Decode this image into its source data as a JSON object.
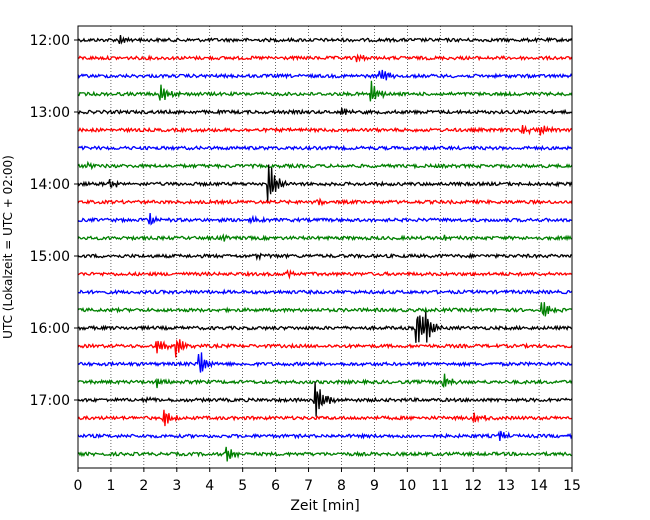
{
  "chart_data": {
    "type": "line",
    "title": "",
    "xlabel": "Zeit  [min]",
    "ylabel": "UTC (Lokalzeit = UTC + 02:00)",
    "xlim": [
      0,
      15
    ],
    "x_ticks": [
      "0",
      "1",
      "2",
      "3",
      "4",
      "5",
      "6",
      "7",
      "8",
      "9",
      "10",
      "11",
      "12",
      "13",
      "14",
      "15"
    ],
    "y_tick_labels": [
      "12:00",
      "13:00",
      "14:00",
      "15:00",
      "16:00",
      "17:00"
    ],
    "grid": "vertical dotted",
    "row_interval_minutes": 15,
    "trace_colors": [
      "#000000",
      "#ff0000",
      "#0000ff",
      "#008000"
    ],
    "traces": [
      {
        "start": "12:00",
        "color": "#000000",
        "events": [
          {
            "t": 1.3,
            "amp": 0.3
          }
        ]
      },
      {
        "start": "12:15",
        "color": "#ff0000",
        "events": [
          {
            "t": 8.5,
            "amp": 0.2
          }
        ]
      },
      {
        "start": "12:30",
        "color": "#0000ff",
        "events": [
          {
            "t": 9.2,
            "amp": 0.5
          }
        ]
      },
      {
        "start": "12:45",
        "color": "#008000",
        "events": [
          {
            "t": 2.5,
            "amp": 0.9
          },
          {
            "t": 8.9,
            "amp": 0.8
          }
        ]
      },
      {
        "start": "13:00",
        "color": "#000000",
        "events": [
          {
            "t": 8.0,
            "amp": 0.3
          }
        ]
      },
      {
        "start": "13:15",
        "color": "#ff0000",
        "events": [
          {
            "t": 14.0,
            "amp": 0.4
          },
          {
            "t": 13.5,
            "amp": 0.3
          }
        ]
      },
      {
        "start": "13:30",
        "color": "#0000ff",
        "events": []
      },
      {
        "start": "13:45",
        "color": "#008000",
        "events": [
          {
            "t": 0.3,
            "amp": 0.2
          }
        ]
      },
      {
        "start": "14:00",
        "color": "#000000",
        "events": [
          {
            "t": 5.8,
            "amp": 1.6
          },
          {
            "t": 1.0,
            "amp": 0.3
          }
        ]
      },
      {
        "start": "14:15",
        "color": "#ff0000",
        "events": [
          {
            "t": 7.3,
            "amp": 0.3
          }
        ]
      },
      {
        "start": "14:30",
        "color": "#0000ff",
        "events": [
          {
            "t": 2.2,
            "amp": 0.4
          },
          {
            "t": 5.2,
            "amp": 0.3
          }
        ]
      },
      {
        "start": "14:45",
        "color": "#008000",
        "events": [
          {
            "t": 4.4,
            "amp": 0.2
          },
          {
            "t": 11.1,
            "amp": 0.2
          }
        ]
      },
      {
        "start": "15:00",
        "color": "#000000",
        "events": [
          {
            "t": 5.4,
            "amp": 0.2
          }
        ]
      },
      {
        "start": "15:15",
        "color": "#ff0000",
        "events": [
          {
            "t": 6.4,
            "amp": 0.2
          }
        ]
      },
      {
        "start": "15:30",
        "color": "#0000ff",
        "events": []
      },
      {
        "start": "15:45",
        "color": "#008000",
        "events": [
          {
            "t": 14.1,
            "amp": 0.9
          }
        ]
      },
      {
        "start": "16:00",
        "color": "#000000",
        "events": [
          {
            "t": 10.3,
            "amp": 1.4
          },
          {
            "t": 10.6,
            "amp": 0.8
          }
        ]
      },
      {
        "start": "16:15",
        "color": "#ff0000",
        "events": [
          {
            "t": 2.4,
            "amp": 0.6
          },
          {
            "t": 3.0,
            "amp": 0.8
          }
        ]
      },
      {
        "start": "16:30",
        "color": "#0000ff",
        "events": [
          {
            "t": 3.7,
            "amp": 0.9
          }
        ]
      },
      {
        "start": "16:45",
        "color": "#008000",
        "events": [
          {
            "t": 2.4,
            "amp": 0.3
          },
          {
            "t": 11.1,
            "amp": 0.6
          }
        ]
      },
      {
        "start": "17:00",
        "color": "#000000",
        "events": [
          {
            "t": 7.2,
            "amp": 1.6
          },
          {
            "t": 2.0,
            "amp": 0.2
          }
        ]
      },
      {
        "start": "17:15",
        "color": "#ff0000",
        "events": [
          {
            "t": 2.6,
            "amp": 0.8
          },
          {
            "t": 12.0,
            "amp": 0.5
          }
        ]
      },
      {
        "start": "17:30",
        "color": "#0000ff",
        "events": [
          {
            "t": 12.8,
            "amp": 0.4
          }
        ]
      },
      {
        "start": "17:45",
        "color": "#008000",
        "events": [
          {
            "t": 4.5,
            "amp": 0.6
          }
        ]
      }
    ]
  }
}
